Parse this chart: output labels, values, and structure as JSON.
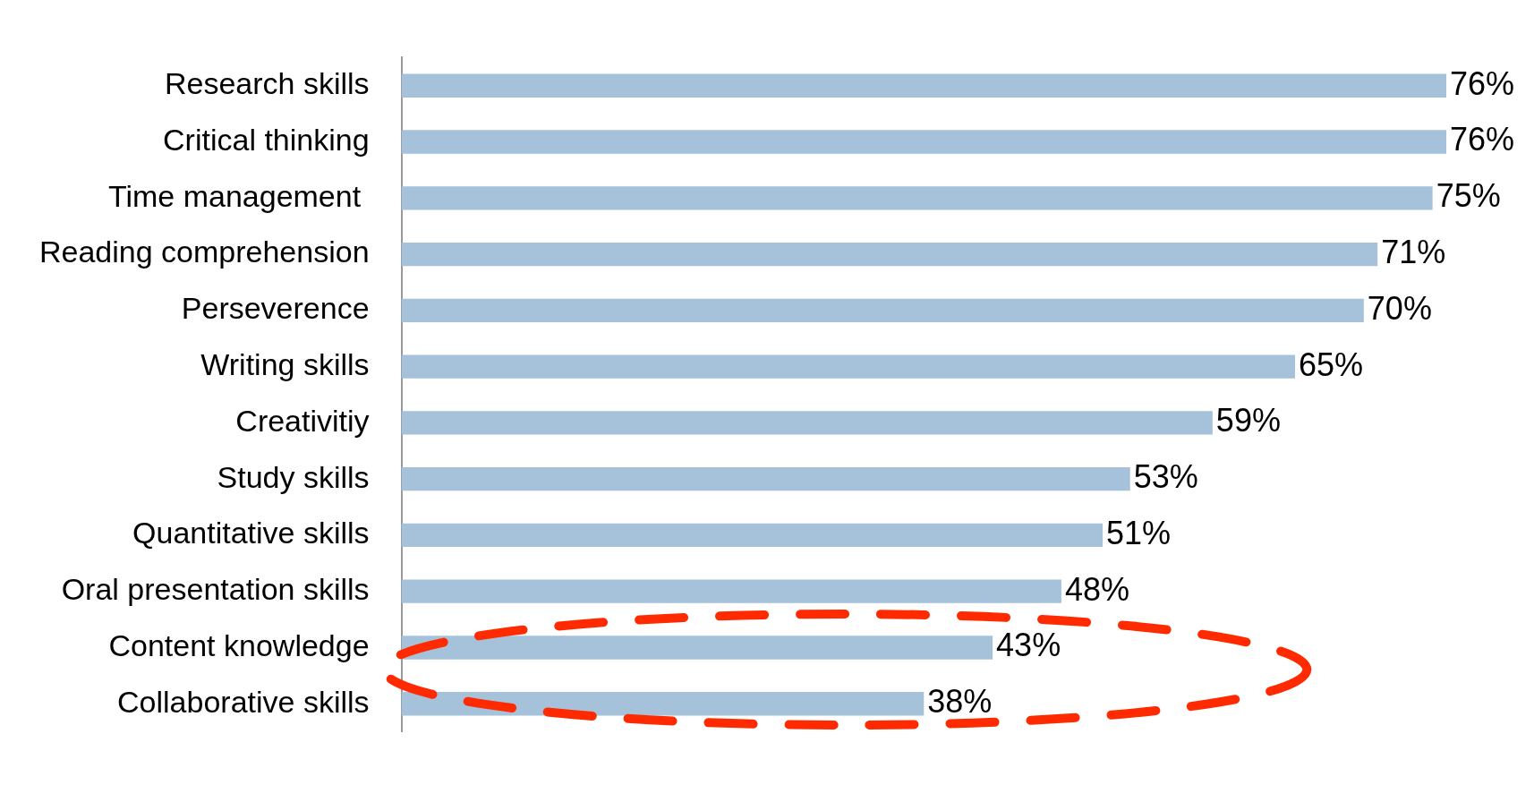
{
  "chart_data": {
    "type": "bar",
    "orientation": "horizontal",
    "categories": [
      "Research skills",
      "Critical thinking",
      "Time management ",
      "Reading comprehension",
      "Perseverence",
      "Writing skills",
      "Creativitiy",
      "Study skills",
      "Quantitative skills",
      "Oral presentation skills",
      "Content knowledge",
      "Collaborative skills"
    ],
    "values": [
      76,
      76,
      75,
      71,
      70,
      65,
      59,
      53,
      51,
      48,
      43,
      38
    ],
    "value_labels": [
      "76%",
      "76%",
      "75%",
      "71%",
      "70%",
      "65%",
      "59%",
      "53%",
      "51%",
      "48%",
      "43%",
      "38%"
    ],
    "color": "#a5c2da",
    "legend": false
  }
}
